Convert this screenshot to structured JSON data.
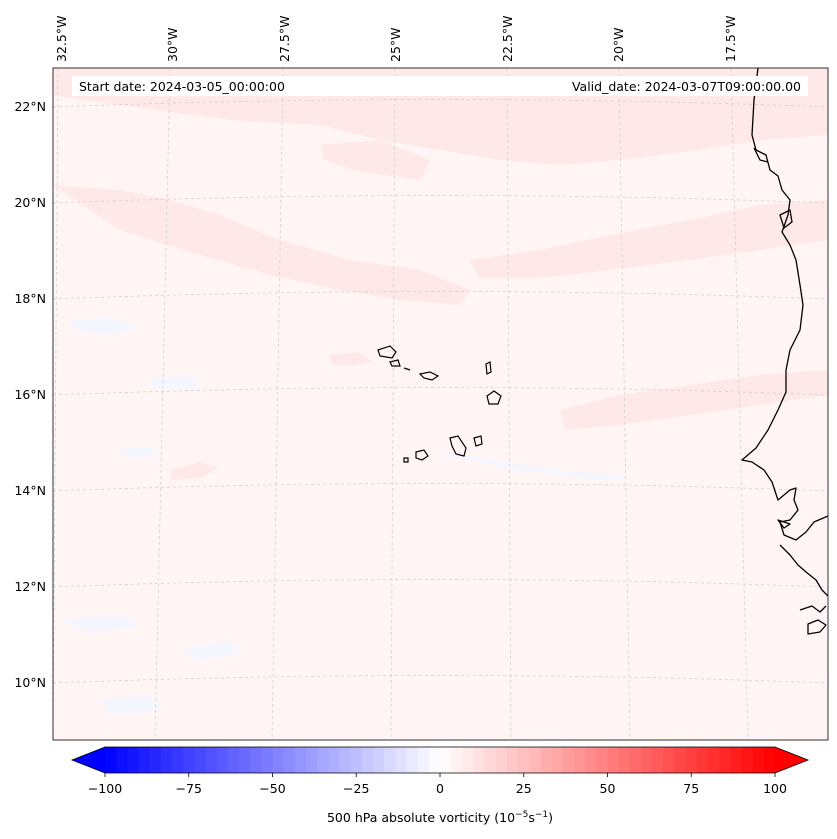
{
  "header": {
    "start_date": "Start date: 2024-03-05_00:00:00",
    "valid_date": "Valid_date: 2024-03-07T09:00:00.00"
  },
  "longitude_labels": [
    "32.5°W",
    "30°W",
    "27.5°W",
    "25°W",
    "22.5°W",
    "20°W",
    "17.5°W"
  ],
  "latitude_labels": [
    "22°N",
    "20°N",
    "18°N",
    "16°N",
    "14°N",
    "12°N",
    "10°N"
  ],
  "colorbar": {
    "title_prefix": "500 hPa absolute vorticity (10",
    "title_exp1": "−5",
    "title_mid": "s",
    "title_exp2": "−1",
    "title_suffix": ")",
    "tick_labels": [
      "−100",
      "−75",
      "−50",
      "−25",
      "0",
      "25",
      "50",
      "75",
      "100"
    ],
    "range": [
      -100,
      100
    ],
    "levels": 60,
    "colormap": "bwr",
    "low_color": "#0000ff",
    "mid_color": "#ffffff",
    "high_color": "#ff0000",
    "extend": "both"
  },
  "colors": {
    "background_field": "#fff5f5",
    "light_red_field": "#ffe6e6",
    "light_blue_field": "#f5f8ff",
    "coastline": "#000000",
    "gridline": "#cccccc"
  }
}
